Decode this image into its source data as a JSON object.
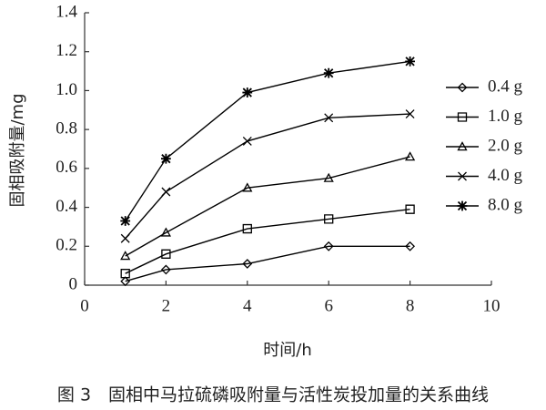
{
  "chart_data": {
    "type": "line",
    "xlabel": "时间/h",
    "ylabel": "固相吸附量/mg",
    "caption": "图 3　固相中马拉硫磷吸附量与活性炭投加量的关系曲线",
    "x": [
      1,
      2,
      4,
      6,
      8
    ],
    "series": [
      {
        "name": "0.4 g",
        "color": "#000000",
        "marker": "diamond",
        "values": [
          0.02,
          0.08,
          0.11,
          0.2,
          0.2
        ]
      },
      {
        "name": "1.0 g",
        "color": "#000000",
        "marker": "square",
        "values": [
          0.06,
          0.16,
          0.29,
          0.34,
          0.39
        ]
      },
      {
        "name": "2.0 g",
        "color": "#000000",
        "marker": "triangle",
        "values": [
          0.15,
          0.27,
          0.5,
          0.55,
          0.66
        ]
      },
      {
        "name": "4.0 g",
        "color": "#000000",
        "marker": "x",
        "values": [
          0.24,
          0.48,
          0.74,
          0.86,
          0.88
        ]
      },
      {
        "name": "8.0 g",
        "color": "#000000",
        "marker": "asterisk",
        "values": [
          0.33,
          0.65,
          0.99,
          1.09,
          1.15
        ]
      }
    ],
    "xlim": [
      0,
      10
    ],
    "xticks": [
      0,
      2,
      4,
      6,
      8,
      10
    ],
    "ylim": [
      0,
      1.4
    ],
    "yticks": [
      0,
      0.2,
      0.4,
      0.6,
      0.8,
      {
        "value": 1,
        "label": "1.0"
      },
      1.2,
      1.4
    ],
    "grid": false,
    "legend": "right"
  }
}
